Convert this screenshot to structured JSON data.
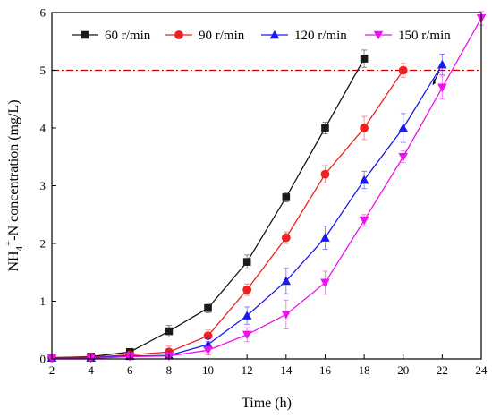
{
  "chart_data": {
    "type": "line",
    "title": "",
    "xlabel": "Time (h)",
    "ylabel_parts": {
      "nh": "NH",
      "sub4": "4",
      "sup": "+",
      "rest": "-N concentration (mg/L)"
    },
    "x_ticks": [
      2,
      4,
      6,
      8,
      10,
      12,
      14,
      16,
      18,
      20,
      22,
      24
    ],
    "y_ticks": [
      0,
      1,
      2,
      3,
      4,
      5,
      6
    ],
    "xlim": [
      2,
      24
    ],
    "ylim": [
      0,
      6
    ],
    "legend_position": "top",
    "reference_line": {
      "y": 5,
      "color": "#cc0000",
      "style": "dash-dot"
    },
    "series": [
      {
        "name": "60 r/min",
        "color": "#1a1a1a",
        "marker": "square",
        "x": [
          2,
          4,
          6,
          8,
          10,
          12,
          14,
          16,
          18
        ],
        "y": [
          0.02,
          0.04,
          0.12,
          0.48,
          0.88,
          1.68,
          2.8,
          4.0,
          5.2
        ],
        "err": [
          0.02,
          0.02,
          0.03,
          0.1,
          0.08,
          0.12,
          0.08,
          0.1,
          0.15
        ]
      },
      {
        "name": "90 r/min",
        "color": "#ee2020",
        "marker": "circle",
        "x": [
          2,
          4,
          6,
          8,
          10,
          12,
          14,
          16,
          18,
          20
        ],
        "y": [
          0.02,
          0.03,
          0.07,
          0.12,
          0.4,
          1.2,
          2.1,
          3.2,
          4.0,
          5.0
        ],
        "err": [
          0.02,
          0.02,
          0.04,
          0.1,
          0.1,
          0.1,
          0.1,
          0.15,
          0.2,
          0.12
        ]
      },
      {
        "name": "120 r/min",
        "color": "#1a1aee",
        "marker": "triangle-up",
        "x": [
          2,
          4,
          6,
          8,
          10,
          12,
          14,
          16,
          18,
          20,
          22
        ],
        "y": [
          0.02,
          0.02,
          0.05,
          0.06,
          0.25,
          0.75,
          1.35,
          2.1,
          3.1,
          4.0,
          5.1
        ],
        "err": [
          0.02,
          0.02,
          0.03,
          0.05,
          0.1,
          0.15,
          0.22,
          0.2,
          0.15,
          0.25,
          0.18
        ]
      },
      {
        "name": "150 r/min",
        "color": "#ee10ee",
        "marker": "triangle-down",
        "x": [
          2,
          4,
          6,
          8,
          10,
          12,
          14,
          16,
          18,
          20,
          22,
          24
        ],
        "y": [
          0.01,
          0.01,
          0.04,
          0.05,
          0.15,
          0.42,
          0.77,
          1.32,
          2.4,
          3.5,
          4.7,
          5.9
        ],
        "err": [
          0.01,
          0.01,
          0.03,
          0.04,
          0.08,
          0.12,
          0.25,
          0.2,
          0.1,
          0.1,
          0.2,
          0.12
        ]
      }
    ]
  }
}
